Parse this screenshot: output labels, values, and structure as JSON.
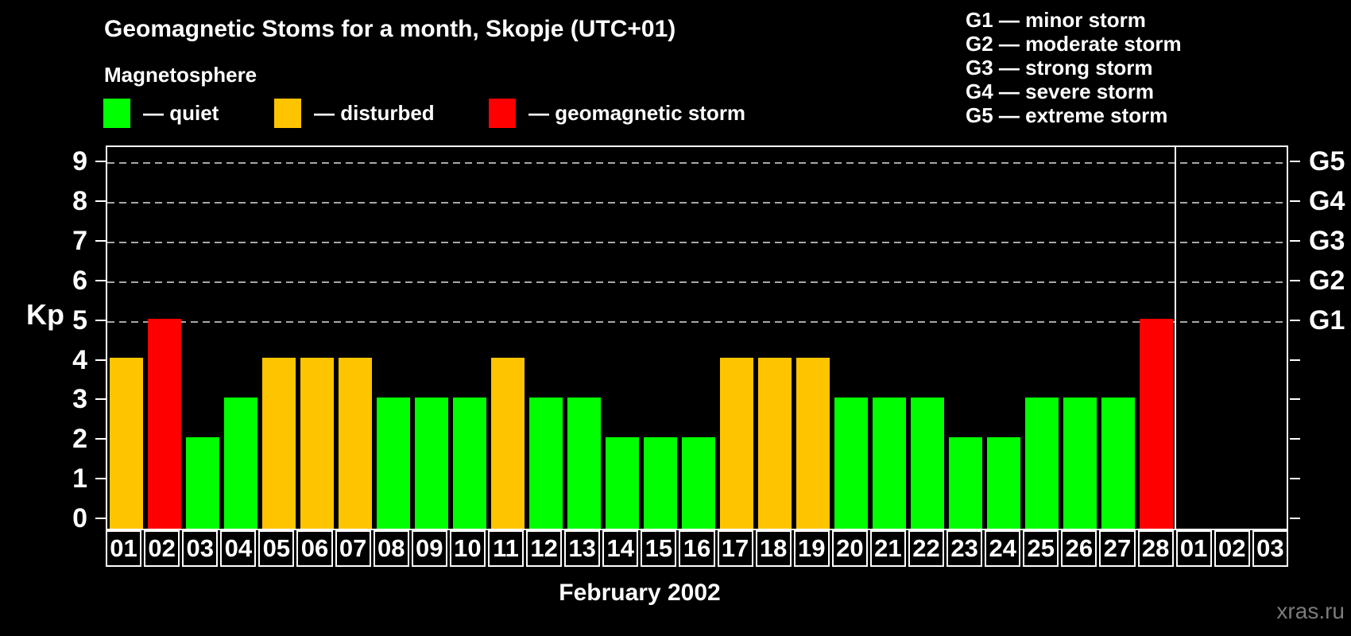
{
  "page": {
    "title": "Geomagnetic Stoms for a month, Skopje (UTC+01)",
    "month_label": "February 2002",
    "watermark": "xras.ru",
    "background_color": "#000000",
    "text_color": "#ffffff"
  },
  "legend": {
    "heading": "Magnetosphere",
    "items": [
      {
        "name": "quiet",
        "label": "— quiet",
        "color": "#00ff00"
      },
      {
        "name": "disturbed",
        "label": "— disturbed",
        "color": "#ffc400"
      },
      {
        "name": "storm",
        "label": "— geomagnetic storm",
        "color": "#ff0000"
      }
    ]
  },
  "storm_scale_legend": {
    "items": [
      "G1 — minor storm",
      "G2 — moderate storm",
      "G3 — strong storm",
      "G4 — severe storm",
      "G5 — extreme storm"
    ]
  },
  "chart_data": {
    "type": "bar",
    "title": "Geomagnetic Stoms for a month, Skopje (UTC+01)",
    "xlabel": "February 2002",
    "ylabel": "Kp",
    "ylim": [
      0,
      9.4
    ],
    "grid": "horizontal dashed gray lines at Kp 5 through 9",
    "gridline_color": "#a8a8a8",
    "y_ticks": [
      0,
      1,
      2,
      3,
      4,
      5,
      6,
      7,
      8,
      9
    ],
    "gridline_levels": [
      5,
      6,
      7,
      8,
      9
    ],
    "right_axis": [
      {
        "kp": 5,
        "label": "G1"
      },
      {
        "kp": 6,
        "label": "G2"
      },
      {
        "kp": 7,
        "label": "G3"
      },
      {
        "kp": 8,
        "label": "G4"
      },
      {
        "kp": 9,
        "label": "G5"
      }
    ],
    "colors": {
      "quiet": "#00ff00",
      "disturbed": "#ffc400",
      "storm": "#ff0000"
    },
    "categories": [
      "01",
      "02",
      "03",
      "04",
      "05",
      "06",
      "07",
      "08",
      "09",
      "10",
      "11",
      "12",
      "13",
      "14",
      "15",
      "16",
      "17",
      "18",
      "19",
      "20",
      "21",
      "22",
      "23",
      "24",
      "25",
      "26",
      "27",
      "28",
      "01",
      "02",
      "03"
    ],
    "month_separator_after_index": 27,
    "bars": [
      {
        "day": "01",
        "kp": 4,
        "status": "disturbed"
      },
      {
        "day": "02",
        "kp": 5,
        "status": "storm"
      },
      {
        "day": "03",
        "kp": 2,
        "status": "quiet"
      },
      {
        "day": "04",
        "kp": 3,
        "status": "quiet"
      },
      {
        "day": "05",
        "kp": 4,
        "status": "disturbed"
      },
      {
        "day": "06",
        "kp": 4,
        "status": "disturbed"
      },
      {
        "day": "07",
        "kp": 4,
        "status": "disturbed"
      },
      {
        "day": "08",
        "kp": 3,
        "status": "quiet"
      },
      {
        "day": "09",
        "kp": 3,
        "status": "quiet"
      },
      {
        "day": "10",
        "kp": 3,
        "status": "quiet"
      },
      {
        "day": "11",
        "kp": 4,
        "status": "disturbed"
      },
      {
        "day": "12",
        "kp": 3,
        "status": "quiet"
      },
      {
        "day": "13",
        "kp": 3,
        "status": "quiet"
      },
      {
        "day": "14",
        "kp": 2,
        "status": "quiet"
      },
      {
        "day": "15",
        "kp": 2,
        "status": "quiet"
      },
      {
        "day": "16",
        "kp": 2,
        "status": "quiet"
      },
      {
        "day": "17",
        "kp": 4,
        "status": "disturbed"
      },
      {
        "day": "18",
        "kp": 4,
        "status": "disturbed"
      },
      {
        "day": "19",
        "kp": 4,
        "status": "disturbed"
      },
      {
        "day": "20",
        "kp": 3,
        "status": "quiet"
      },
      {
        "day": "21",
        "kp": 3,
        "status": "quiet"
      },
      {
        "day": "22",
        "kp": 3,
        "status": "quiet"
      },
      {
        "day": "23",
        "kp": 2,
        "status": "quiet"
      },
      {
        "day": "24",
        "kp": 2,
        "status": "quiet"
      },
      {
        "day": "25",
        "kp": 3,
        "status": "quiet"
      },
      {
        "day": "26",
        "kp": 3,
        "status": "quiet"
      },
      {
        "day": "27",
        "kp": 3,
        "status": "quiet"
      },
      {
        "day": "28",
        "kp": 5,
        "status": "storm"
      },
      {
        "day": "01",
        "kp": null,
        "status": "none"
      },
      {
        "day": "02",
        "kp": null,
        "status": "none"
      },
      {
        "day": "03",
        "kp": null,
        "status": "none"
      }
    ]
  }
}
